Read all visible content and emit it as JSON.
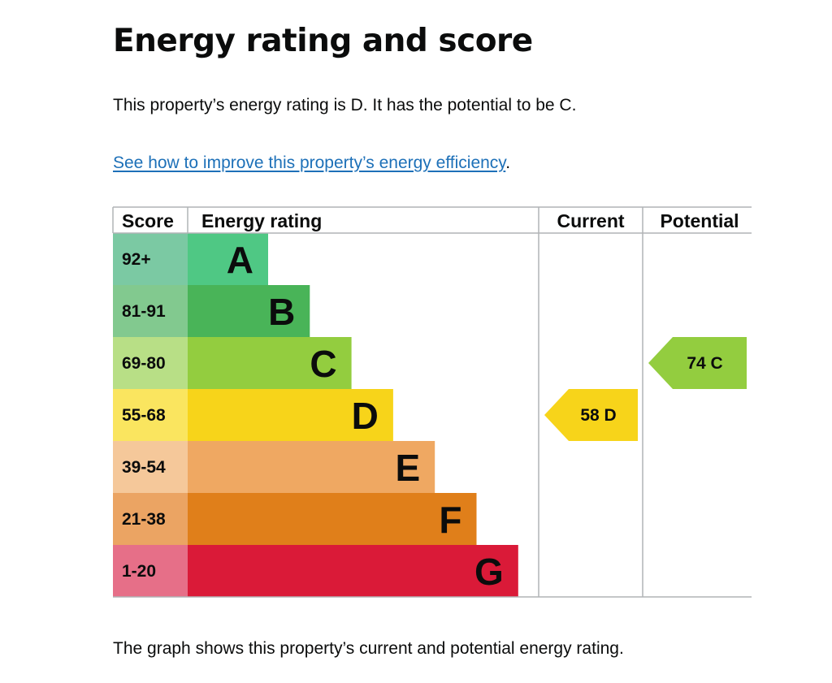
{
  "page": {
    "title": "Energy rating and score",
    "summary": "This property’s energy rating is D. It has the potential to be C.",
    "improve_link": "See how to improve this property’s energy efficiency",
    "improve_suffix": ".",
    "caption": "The graph shows this property’s current and potential energy rating."
  },
  "chart_data": {
    "type": "bar",
    "headers": {
      "score": "Score",
      "rating": "Energy rating",
      "current": "Current",
      "potential": "Potential"
    },
    "bands": [
      {
        "letter": "A",
        "range": "92+",
        "color": "#4fc884",
        "score_bg": "#7bc9a3"
      },
      {
        "letter": "B",
        "range": "81-91",
        "color": "#49b458",
        "score_bg": "#82c98f"
      },
      {
        "letter": "C",
        "range": "69-80",
        "color": "#93cd3f",
        "score_bg": "#b8df86"
      },
      {
        "letter": "D",
        "range": "55-68",
        "color": "#f7d41a",
        "score_bg": "#fae55f"
      },
      {
        "letter": "E",
        "range": "39-54",
        "color": "#efa862",
        "score_bg": "#f5c89a"
      },
      {
        "letter": "F",
        "range": "21-38",
        "color": "#e07f1a",
        "score_bg": "#eba463"
      },
      {
        "letter": "G",
        "range": "1-20",
        "color": "#da1a38",
        "score_bg": "#e66f88"
      }
    ],
    "current": {
      "score": 58,
      "band": "D",
      "label": "58  D",
      "color": "#f7d41a"
    },
    "potential": {
      "score": 74,
      "band": "C",
      "label": "74  C",
      "color": "#93cd3f"
    }
  }
}
